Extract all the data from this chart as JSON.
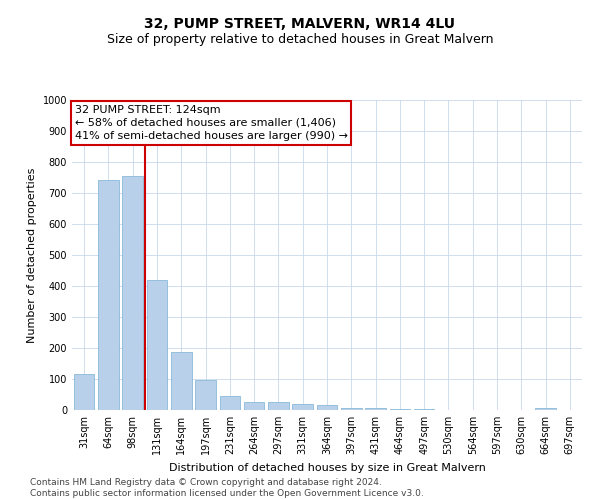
{
  "title": "32, PUMP STREET, MALVERN, WR14 4LU",
  "subtitle": "Size of property relative to detached houses in Great Malvern",
  "xlabel": "Distribution of detached houses by size in Great Malvern",
  "ylabel": "Number of detached properties",
  "categories": [
    "31sqm",
    "64sqm",
    "98sqm",
    "131sqm",
    "164sqm",
    "197sqm",
    "231sqm",
    "264sqm",
    "297sqm",
    "331sqm",
    "364sqm",
    "397sqm",
    "431sqm",
    "464sqm",
    "497sqm",
    "530sqm",
    "564sqm",
    "597sqm",
    "630sqm",
    "664sqm",
    "697sqm"
  ],
  "values": [
    115,
    742,
    755,
    420,
    187,
    97,
    45,
    25,
    25,
    18,
    15,
    5,
    5,
    3,
    2,
    1,
    1,
    1,
    1,
    8,
    1
  ],
  "bar_color": "#b8d0ea",
  "bar_edge_color": "#7aafd4",
  "vline_color": "#cc0000",
  "annotation_lines": [
    "32 PUMP STREET: 124sqm",
    "← 58% of detached houses are smaller (1,406)",
    "41% of semi-detached houses are larger (990) →"
  ],
  "annotation_box_color": "#ffffff",
  "annotation_box_edge_color": "#cc0000",
  "ylim": [
    0,
    1000
  ],
  "yticks": [
    0,
    100,
    200,
    300,
    400,
    500,
    600,
    700,
    800,
    900,
    1000
  ],
  "background_color": "#ffffff",
  "grid_color": "#c8d8ea",
  "footer_line1": "Contains HM Land Registry data © Crown copyright and database right 2024.",
  "footer_line2": "Contains public sector information licensed under the Open Government Licence v3.0.",
  "title_fontsize": 10,
  "subtitle_fontsize": 9,
  "axis_label_fontsize": 8,
  "tick_fontsize": 7,
  "annotation_fontsize": 8,
  "footer_fontsize": 6.5
}
